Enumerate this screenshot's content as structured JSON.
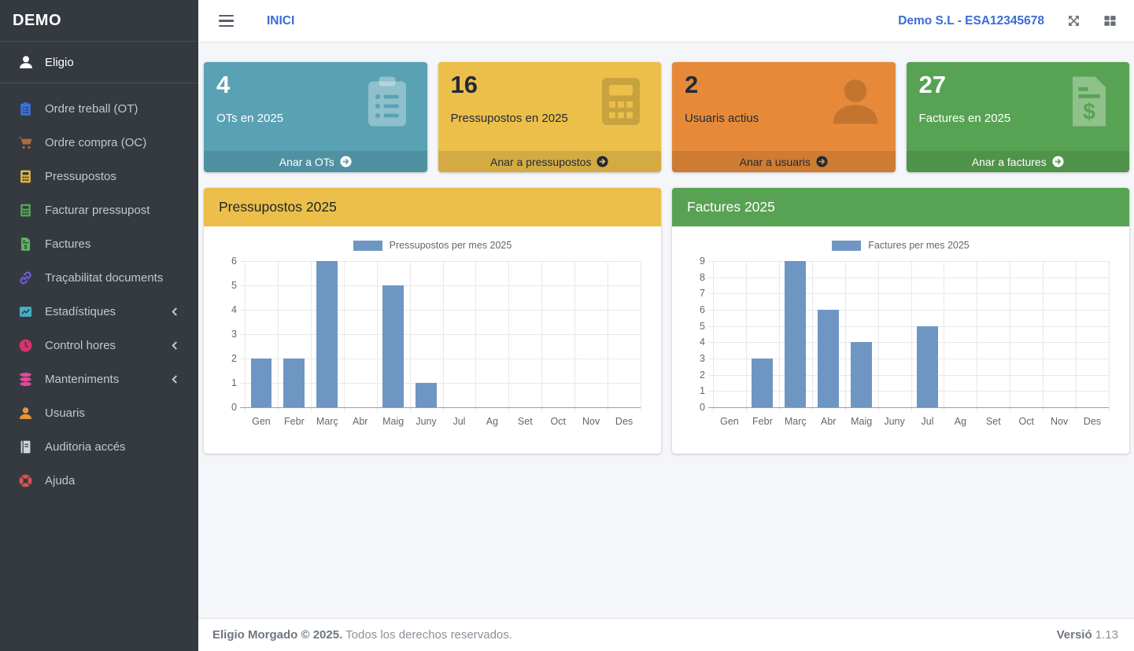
{
  "brand": {
    "title": "DEMO"
  },
  "navbar": {
    "page_link": "INICI",
    "company_link": "Demo S.L - ESA12345678",
    "link_color": "#3d6bd8"
  },
  "sidebar": {
    "user": {
      "name": "Eligio",
      "icon": "user-icon"
    },
    "items": [
      {
        "label": "Ordre treball (OT)",
        "icon": "clipboard-list-icon",
        "color": "#3a6fe0",
        "has_submenu": false
      },
      {
        "label": "Ordre compra (OC)",
        "icon": "cart-icon",
        "color": "#b0693a",
        "has_submenu": false
      },
      {
        "label": "Pressupostos",
        "icon": "calculator-icon",
        "color": "#e6bb3f",
        "has_submenu": false
      },
      {
        "label": "Facturar pressupost",
        "icon": "calculator-icon",
        "color": "#55a555",
        "has_submenu": false
      },
      {
        "label": "Factures",
        "icon": "invoice-dollar-icon",
        "color": "#59b75f",
        "has_submenu": false
      },
      {
        "label": "Traçabilitat documents",
        "icon": "link-icon",
        "color": "#7a5ee0",
        "has_submenu": false
      },
      {
        "label": "Estadístiques",
        "icon": "chart-line-icon",
        "color": "#45afc5",
        "has_submenu": true
      },
      {
        "label": "Control hores",
        "icon": "clock-icon",
        "color": "#d6336c",
        "has_submenu": true
      },
      {
        "label": "Manteniments",
        "icon": "database-icon",
        "color": "#e04a9a",
        "has_submenu": true
      },
      {
        "label": "Usuaris",
        "icon": "user-icon",
        "color": "#e8933c",
        "has_submenu": false
      },
      {
        "label": "Auditoria accés",
        "icon": "book-icon",
        "color": "#d3d7dc",
        "has_submenu": false
      },
      {
        "label": "Ajuda",
        "icon": "life-ring-icon",
        "color": "#d9534f",
        "has_submenu": false
      }
    ]
  },
  "info_boxes": [
    {
      "value": "4",
      "label": "OTs en 2025",
      "footer_label": "Anar a OTs",
      "bg": "#58a2b4",
      "text_style": "light",
      "icon": "clipboard-list-icon"
    },
    {
      "value": "16",
      "label": "Pressupostos en 2025",
      "footer_label": "Anar a pressupostos",
      "bg": "#ecbf4a",
      "text_style": "dark",
      "icon": "calculator-icon"
    },
    {
      "value": "2",
      "label": "Usuaris actius",
      "footer_label": "Anar a usuaris",
      "bg": "#e68a39",
      "text_style": "dark",
      "icon": "user-icon"
    },
    {
      "value": "27",
      "label": "Factures en 2025",
      "footer_label": "Anar a factures",
      "bg": "#58a353",
      "text_style": "light",
      "icon": "invoice-dollar-icon"
    }
  ],
  "chart_cards": [
    {
      "title": "Pressupostos 2025",
      "header_bg": "#ecbf4a",
      "header_text": "#212529"
    },
    {
      "title": "Factures 2025",
      "header_bg": "#58a353",
      "header_text": "#ffffff"
    }
  ],
  "chart_data": [
    {
      "type": "bar",
      "title": "Pressupostos 2025",
      "legend": "Pressupostos per mes 2025",
      "categories": [
        "Gen",
        "Febr",
        "Març",
        "Abr",
        "Maig",
        "Juny",
        "Jul",
        "Ag",
        "Set",
        "Oct",
        "Nov",
        "Des"
      ],
      "values": [
        2,
        2,
        6,
        0,
        5,
        1,
        0,
        0,
        0,
        0,
        0,
        0
      ],
      "xlabel": "",
      "ylabel": "",
      "ylim": [
        0,
        6
      ],
      "ytick_step": 1,
      "bar_color": "#6e96c3",
      "grid": true,
      "legend_position": "top"
    },
    {
      "type": "bar",
      "title": "Factures 2025",
      "legend": "Factures per mes 2025",
      "categories": [
        "Gen",
        "Febr",
        "Març",
        "Abr",
        "Maig",
        "Juny",
        "Jul",
        "Ag",
        "Set",
        "Oct",
        "Nov",
        "Des"
      ],
      "values": [
        0,
        3,
        9,
        6,
        4,
        0,
        5,
        0,
        0,
        0,
        0,
        0
      ],
      "xlabel": "",
      "ylabel": "",
      "ylim": [
        0,
        9
      ],
      "ytick_step": 1,
      "bar_color": "#6e96c3",
      "grid": true,
      "legend_position": "top"
    }
  ],
  "footer": {
    "left_bold": "Eligio Morgado © 2025.",
    "left_text": "Todos los derechos reservados.",
    "right_bold": "Versió",
    "right_text": "1.13"
  },
  "colors": {
    "sidebar_bg": "#343a40",
    "content_bg": "#f4f6f9",
    "link_blue": "#3d6bd8",
    "bar_blue": "#6e96c3"
  }
}
